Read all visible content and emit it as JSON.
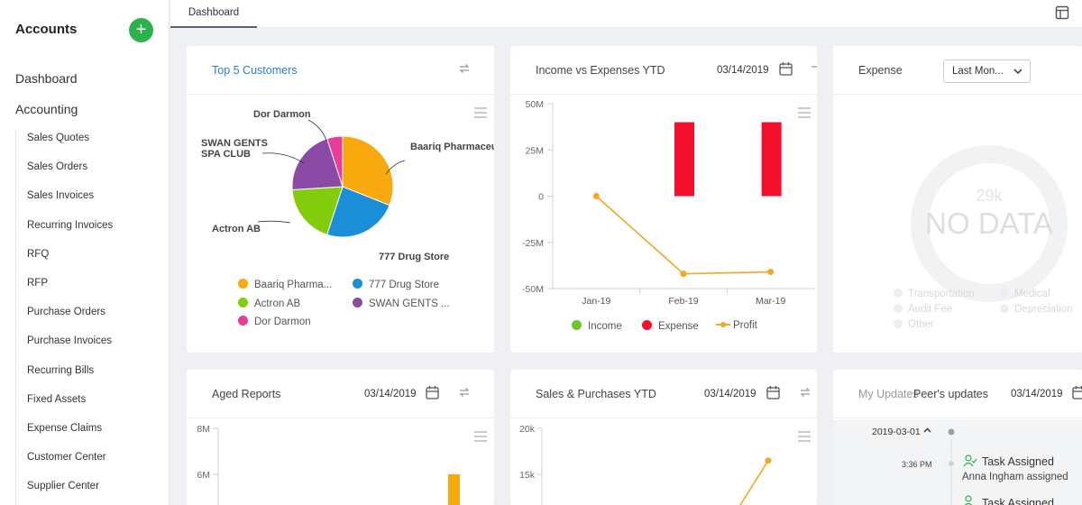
{
  "sidebar": {
    "title": "Accounts",
    "add_label": "+",
    "top_items": [
      "Dashboard",
      "Accounting"
    ],
    "items": [
      "Sales Quotes",
      "Sales Orders",
      "Sales Invoices",
      "Recurring Invoices",
      "RFQ",
      "RFP",
      "Purchase Orders",
      "Purchase Invoices",
      "Recurring Bills",
      "Fixed Assets",
      "Expense Claims",
      "Customer Center",
      "Supplier Center"
    ]
  },
  "tabs": [
    {
      "label": "Dashboard"
    }
  ],
  "colors": {
    "income": "#6dc52a",
    "expense": "#f50f2f",
    "profit": "#f5a623",
    "add": "#2bb24c",
    "link": "#2a7fd0"
  },
  "cards": {
    "top_customers": {
      "title": "Top 5 Customers",
      "labels": [
        "Baariq Pharmaceutic...",
        "777 Drug Store",
        "Actron AB",
        "SWAN GENTS",
        "SPA CLUB",
        "Dor Darmon"
      ],
      "legend": [
        "Baariq Pharma...",
        "777 Drug Store",
        "Actron AB",
        "SWAN GENTS ...",
        "Dor Darmon"
      ]
    },
    "income_expenses": {
      "title": "Income vs Expenses YTD",
      "date": "03/14/2019",
      "legend": [
        "Income",
        "Expense",
        "Profit"
      ]
    },
    "expense": {
      "title": "Expense",
      "select_value": "Last Mon...",
      "center_value": "29k",
      "nodata": "NO DATA",
      "legend": [
        "Transportation",
        "Medical",
        "Audit Fee",
        "Depreciation",
        "Other"
      ]
    },
    "aged_reports": {
      "title": "Aged Reports",
      "date": "03/14/2019"
    },
    "sales_purchases": {
      "title": "Sales & Purchases YTD",
      "date": "03/14/2019"
    },
    "updates": {
      "title_a": "My Updates",
      "title_b": "Peer's updates",
      "date": "03/14/2019",
      "group_date": "2019-03-01",
      "time": "3:36 PM",
      "entry_title": "Task Assigned",
      "entry_text": "Anna Ingham assigned",
      "entry_title_2": "Task Assigned"
    }
  },
  "chart_data": [
    {
      "type": "pie",
      "title": "Top 5 Customers",
      "slices": [
        {
          "label": "Baariq Pharmaceutic...",
          "value": 31,
          "color": "#f8a90d"
        },
        {
          "label": "777 Drug Store",
          "value": 24,
          "color": "#1a8fd8"
        },
        {
          "label": "Actron AB",
          "value": 19,
          "color": "#82cc0c"
        },
        {
          "label": "SWAN GENTS SPA CLUB",
          "value": 21,
          "color": "#8a4aa6"
        },
        {
          "label": "Dor Darmon",
          "value": 5,
          "color": "#ea3d97"
        }
      ]
    },
    {
      "type": "bar",
      "title": "Income vs Expenses YTD",
      "categories": [
        "Jan-19",
        "Feb-19",
        "Mar-19"
      ],
      "series": [
        {
          "name": "Income",
          "values": [
            0,
            0,
            0
          ]
        },
        {
          "name": "Expense",
          "values": [
            0,
            40,
            40
          ]
        },
        {
          "name": "Profit",
          "values": [
            0,
            -42,
            -41
          ]
        }
      ],
      "yticks": [
        "50M",
        "25M",
        "0",
        "-25M",
        "-50M"
      ],
      "ylim": [
        -50,
        50
      ]
    },
    {
      "type": "bar",
      "title": "Aged Reports",
      "yticks": [
        "8M",
        "6M"
      ],
      "values": [
        6
      ],
      "ylim": [
        0,
        8
      ]
    },
    {
      "type": "line",
      "title": "Sales & Purchases YTD",
      "yticks": [
        "20k",
        "15k"
      ],
      "values": [
        16.5
      ],
      "ylim": [
        0,
        20
      ]
    }
  ]
}
